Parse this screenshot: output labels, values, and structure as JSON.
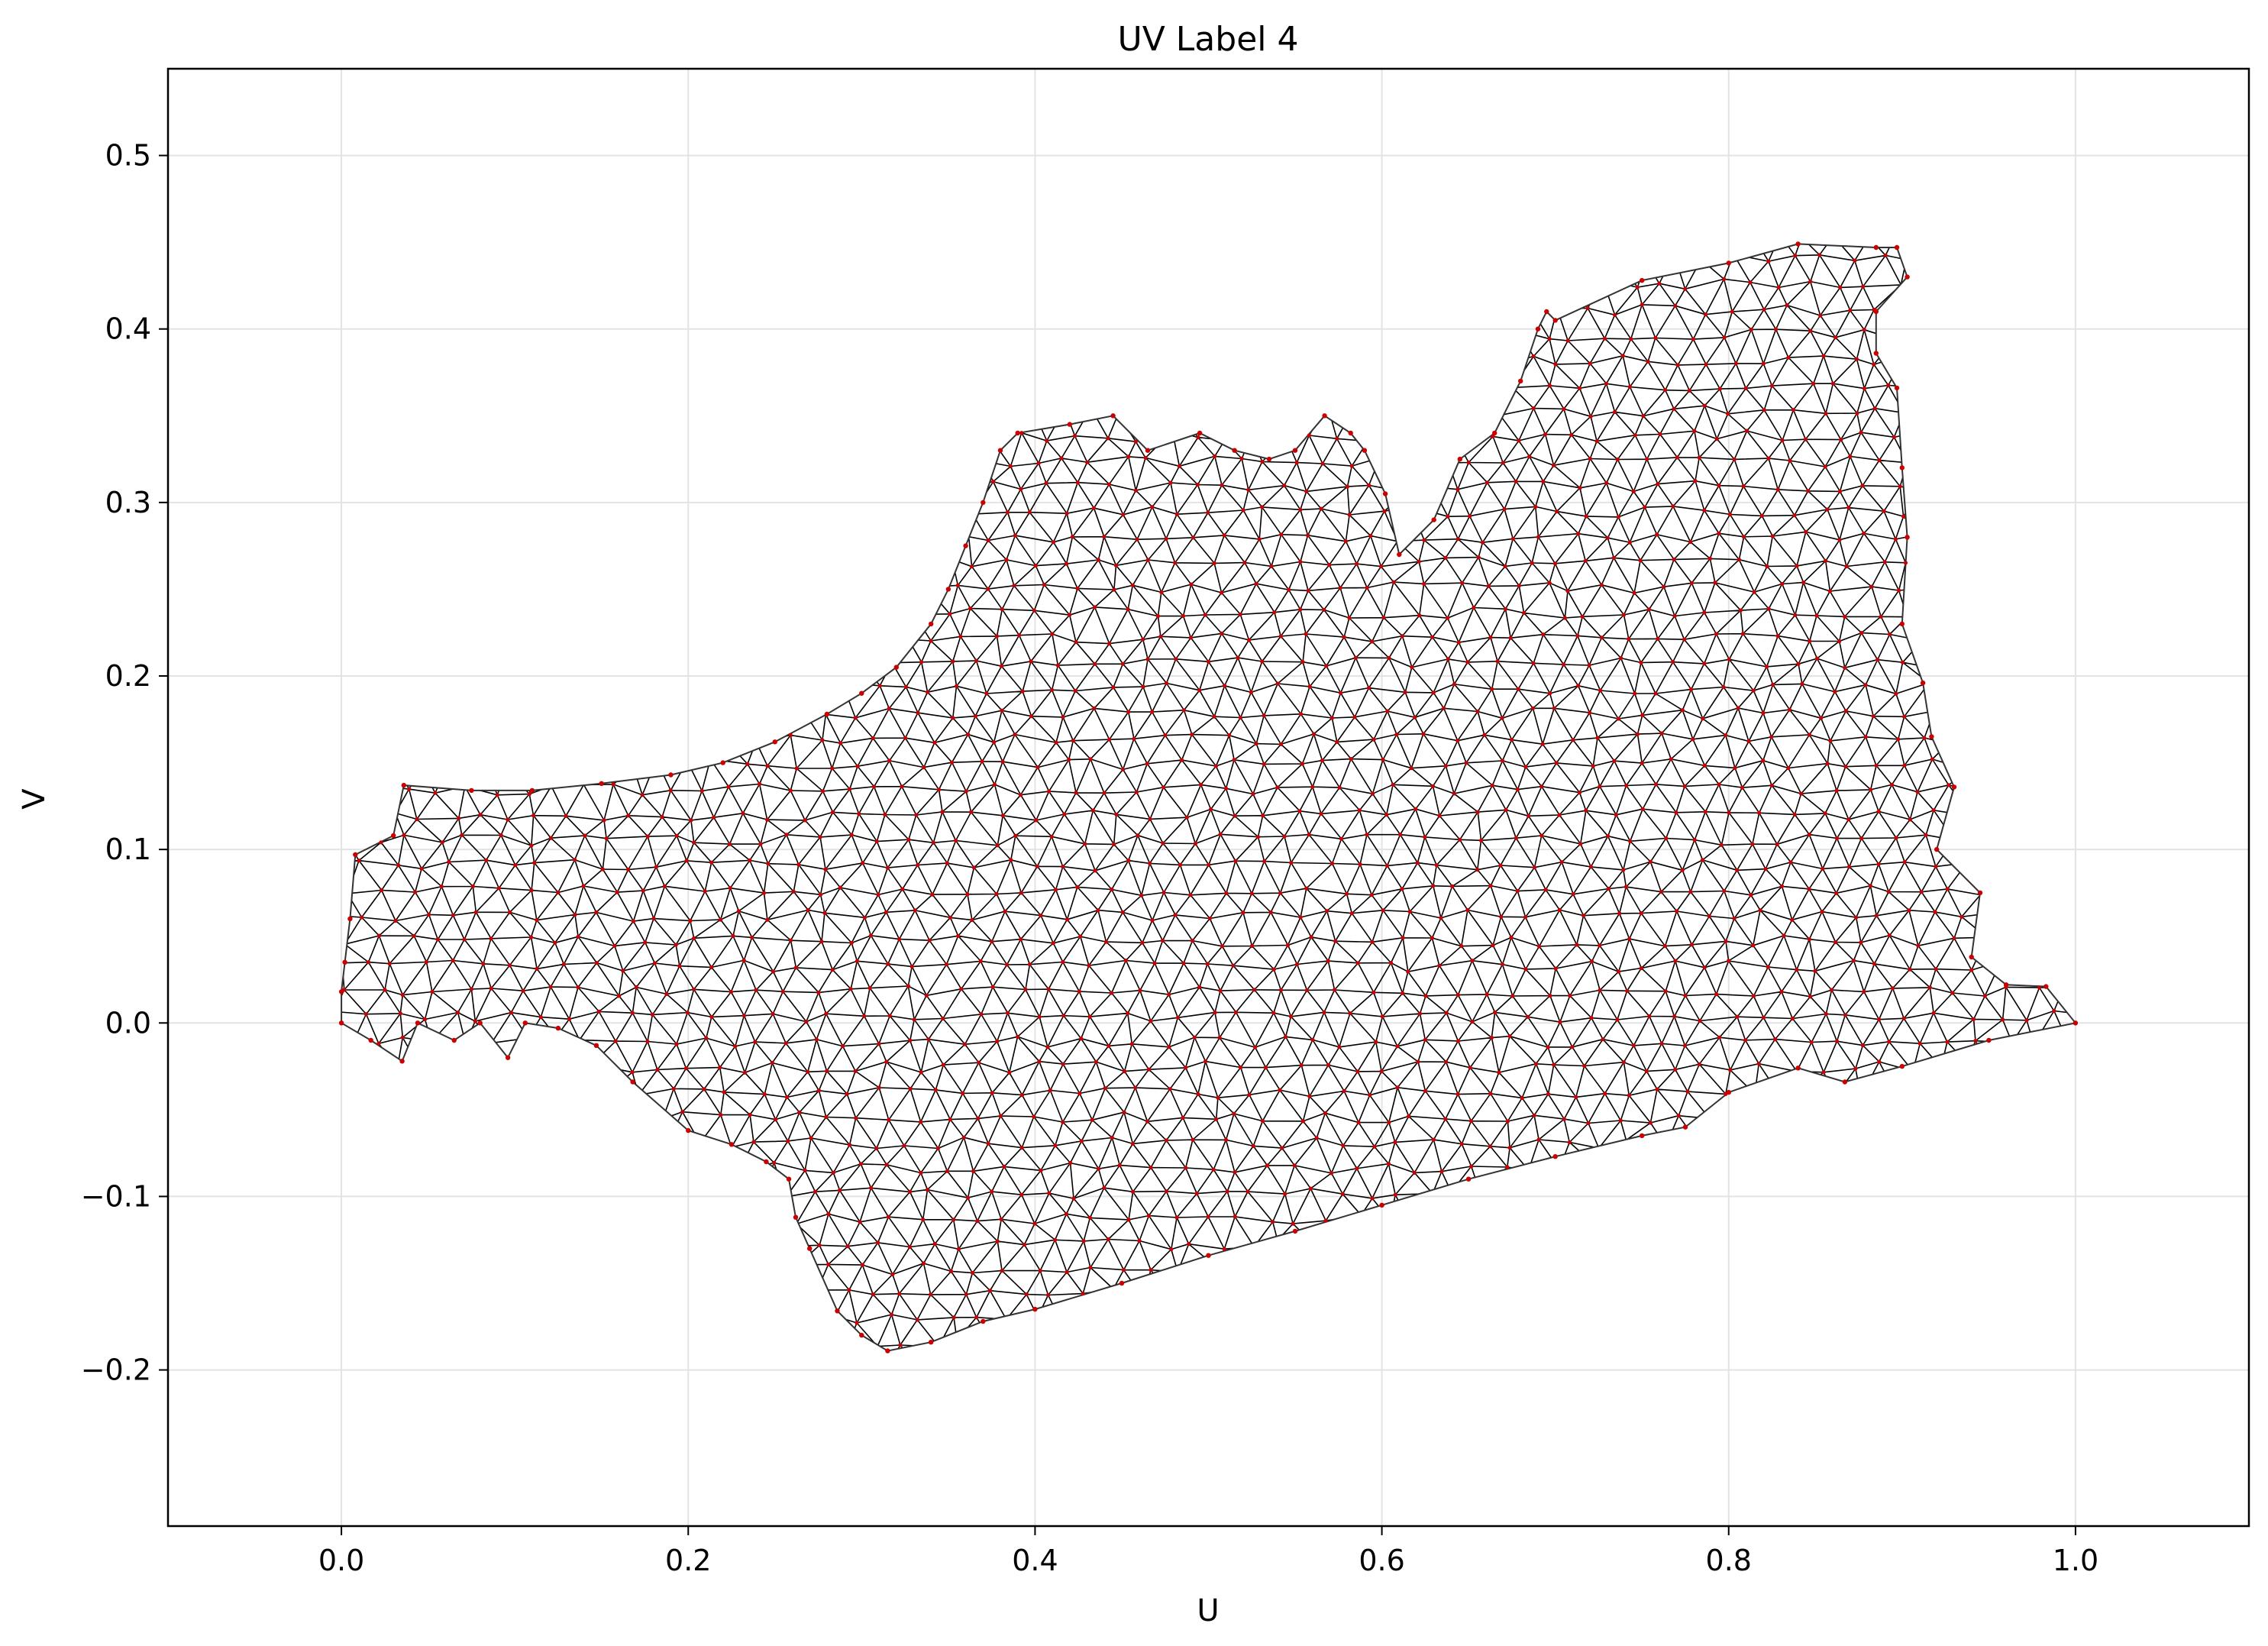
{
  "chart_data": {
    "type": "scatter",
    "title": "UV Label 4",
    "xlabel": "U",
    "ylabel": "V",
    "xlim": [
      -0.1,
      1.1
    ],
    "ylim": [
      -0.29,
      0.55
    ],
    "xticks": [
      0.0,
      0.2,
      0.4,
      0.6,
      0.8,
      1.0
    ],
    "xtick_labels": [
      "0.0",
      "0.2",
      "0.4",
      "0.6",
      "0.8",
      "1.0"
    ],
    "yticks": [
      -0.2,
      -0.1,
      0.0,
      0.1,
      0.2,
      0.3,
      0.4,
      0.5
    ],
    "ytick_labels": [
      "−0.2",
      "−0.1",
      "0.0",
      "0.1",
      "0.2",
      "0.3",
      "0.4",
      "0.5"
    ],
    "grid": true,
    "mesh_color": "#000000",
    "vertex_color": "#cc0000",
    "boundary": [
      [
        0.0,
        0.0
      ],
      [
        0.017,
        -0.01
      ],
      [
        0.035,
        -0.022
      ],
      [
        0.044,
        0.0
      ],
      [
        0.065,
        -0.01
      ],
      [
        0.08,
        0.0
      ],
      [
        0.096,
        -0.02
      ],
      [
        0.106,
        0.0
      ],
      [
        0.125,
        -0.003
      ],
      [
        0.147,
        -0.013
      ],
      [
        0.168,
        -0.034
      ],
      [
        0.2,
        -0.062
      ],
      [
        0.225,
        -0.07
      ],
      [
        0.245,
        -0.08
      ],
      [
        0.258,
        -0.09
      ],
      [
        0.262,
        -0.112
      ],
      [
        0.27,
        -0.13
      ],
      [
        0.286,
        -0.166
      ],
      [
        0.3,
        -0.18
      ],
      [
        0.315,
        -0.189
      ],
      [
        0.34,
        -0.184
      ],
      [
        0.37,
        -0.172
      ],
      [
        0.4,
        -0.165
      ],
      [
        0.45,
        -0.15
      ],
      [
        0.5,
        -0.134
      ],
      [
        0.55,
        -0.12
      ],
      [
        0.6,
        -0.105
      ],
      [
        0.65,
        -0.09
      ],
      [
        0.7,
        -0.077
      ],
      [
        0.75,
        -0.065
      ],
      [
        0.775,
        -0.06
      ],
      [
        0.8,
        -0.04
      ],
      [
        0.84,
        -0.026
      ],
      [
        0.867,
        -0.034
      ],
      [
        0.9,
        -0.025
      ],
      [
        0.95,
        -0.01
      ],
      [
        1.0,
        0.0
      ],
      [
        0.983,
        0.021
      ],
      [
        0.96,
        0.022
      ],
      [
        0.94,
        0.038
      ],
      [
        0.945,
        0.075
      ],
      [
        0.92,
        0.1
      ],
      [
        0.93,
        0.136
      ],
      [
        0.917,
        0.165
      ],
      [
        0.912,
        0.196
      ],
      [
        0.9,
        0.23
      ],
      [
        0.903,
        0.28
      ],
      [
        0.9,
        0.32
      ],
      [
        0.897,
        0.366
      ],
      [
        0.885,
        0.386
      ],
      [
        0.885,
        0.41
      ],
      [
        0.903,
        0.43
      ],
      [
        0.897,
        0.447
      ],
      [
        0.885,
        0.447
      ],
      [
        0.84,
        0.449
      ],
      [
        0.8,
        0.438
      ],
      [
        0.75,
        0.428
      ],
      [
        0.7,
        0.405
      ],
      [
        0.695,
        0.41
      ],
      [
        0.69,
        0.4
      ],
      [
        0.68,
        0.37
      ],
      [
        0.665,
        0.34
      ],
      [
        0.645,
        0.325
      ],
      [
        0.63,
        0.29
      ],
      [
        0.61,
        0.27
      ],
      [
        0.602,
        0.305
      ],
      [
        0.59,
        0.33
      ],
      [
        0.582,
        0.34
      ],
      [
        0.567,
        0.35
      ],
      [
        0.55,
        0.33
      ],
      [
        0.535,
        0.325
      ],
      [
        0.515,
        0.33
      ],
      [
        0.495,
        0.34
      ],
      [
        0.465,
        0.33
      ],
      [
        0.445,
        0.35
      ],
      [
        0.42,
        0.345
      ],
      [
        0.39,
        0.34
      ],
      [
        0.38,
        0.33
      ],
      [
        0.37,
        0.3
      ],
      [
        0.36,
        0.275
      ],
      [
        0.35,
        0.25
      ],
      [
        0.34,
        0.23
      ],
      [
        0.32,
        0.205
      ],
      [
        0.3,
        0.19
      ],
      [
        0.28,
        0.178
      ],
      [
        0.25,
        0.162
      ],
      [
        0.22,
        0.15
      ],
      [
        0.19,
        0.143
      ],
      [
        0.15,
        0.138
      ],
      [
        0.11,
        0.134
      ],
      [
        0.075,
        0.134
      ],
      [
        0.036,
        0.137
      ],
      [
        0.03,
        0.108
      ],
      [
        0.008,
        0.097
      ],
      [
        0.005,
        0.06
      ],
      [
        0.002,
        0.035
      ],
      [
        0.0,
        0.018
      ]
    ]
  }
}
